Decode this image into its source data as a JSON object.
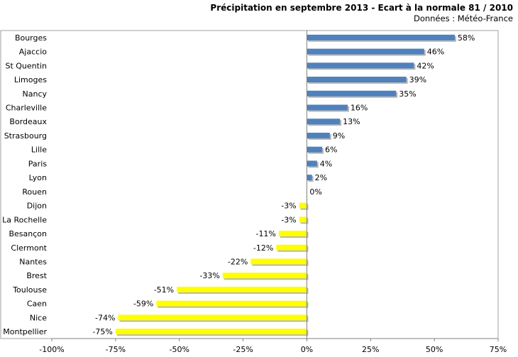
{
  "chart_data": {
    "type": "bar",
    "orientation": "horizontal",
    "title": "Précipitation en septembre 2013 - Ecart à la normale 81 / 2010",
    "subtitle": "Données : Météo-France",
    "categories": [
      "Bourges",
      "Ajaccio",
      "St Quentin",
      "Limoges",
      "Nancy",
      "Charleville",
      "Bordeaux",
      "Strasbourg",
      "Lille",
      "Paris",
      "Lyon",
      "Rouen",
      "Dijon",
      "La Rochelle",
      "Besançon",
      "Clermont",
      "Nantes",
      "Brest",
      "Toulouse",
      "Caen",
      "Nice",
      "Montpellier"
    ],
    "values": [
      58,
      46,
      42,
      39,
      35,
      16,
      13,
      9,
      6,
      4,
      2,
      0,
      -3,
      -3,
      -11,
      -12,
      -22,
      -33,
      -51,
      -59,
      -74,
      -75
    ],
    "value_labels": [
      "58%",
      "46%",
      "42%",
      "39%",
      "35%",
      "16%",
      "13%",
      "9%",
      "6%",
      "4%",
      "2%",
      "0%",
      "-3%",
      "-3%",
      "-11%",
      "-12%",
      "-22%",
      "-33%",
      "-51%",
      "-59%",
      "-74%",
      "-75%"
    ],
    "xlim": [
      -100,
      75
    ],
    "xticks": [
      -100,
      -75,
      -50,
      -25,
      0,
      25,
      50,
      75
    ],
    "xtick_labels": [
      "-100%",
      "-75%",
      "-50%",
      "-25%",
      "0%",
      "25%",
      "50%",
      "75%"
    ],
    "xlabel": "",
    "ylabel": "",
    "grid": false,
    "legend": "none",
    "colors": {
      "positive": "#4f81bd",
      "negative": "#ffff00",
      "shadow": "#b8b8b8",
      "border": "#a0a0a0",
      "axis": "#808080"
    }
  }
}
